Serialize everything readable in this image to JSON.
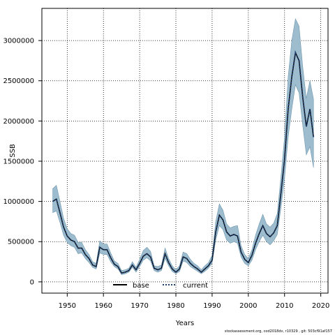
{
  "chart_data": {
    "type": "line",
    "xlabel": "Years",
    "ylabel": "SSB",
    "xlim": [
      1943,
      2022
    ],
    "ylim": [
      -140000,
      3400000
    ],
    "xticks": [
      1950,
      1960,
      1970,
      1980,
      1990,
      2000,
      2010,
      2020
    ],
    "yticks": [
      0,
      500000,
      1000000,
      1500000,
      2000000,
      2500000,
      3000000
    ],
    "grid": true,
    "legend_position": "bottom-center",
    "colors": {
      "band": "#9dbdcf",
      "band_edge": "#6f97af",
      "base": "#000000",
      "current": "#1f3f6e"
    },
    "x": [
      1946,
      1947,
      1948,
      1949,
      1950,
      1951,
      1952,
      1953,
      1954,
      1955,
      1956,
      1957,
      1958,
      1959,
      1960,
      1961,
      1962,
      1963,
      1964,
      1965,
      1966,
      1967,
      1968,
      1969,
      1970,
      1971,
      1972,
      1973,
      1974,
      1975,
      1976,
      1977,
      1978,
      1979,
      1980,
      1981,
      1982,
      1983,
      1984,
      1985,
      1986,
      1987,
      1988,
      1989,
      1990,
      1991,
      1992,
      1993,
      1994,
      1995,
      1996,
      1997,
      1998,
      1999,
      2000,
      2001,
      2002,
      2003,
      2004,
      2005,
      2006,
      2007,
      2008,
      2009,
      2010,
      2011,
      2012,
      2013,
      2014,
      2015,
      2016,
      2017,
      2018
    ],
    "series": [
      {
        "name": "base",
        "style": "solid",
        "values": [
          1000000,
          1030000,
          860000,
          680000,
          570000,
          520000,
          500000,
          420000,
          420000,
          340000,
          290000,
          210000,
          190000,
          430000,
          400000,
          400000,
          300000,
          220000,
          190000,
          110000,
          120000,
          140000,
          210000,
          150000,
          230000,
          320000,
          350000,
          310000,
          170000,
          150000,
          170000,
          350000,
          240000,
          160000,
          120000,
          160000,
          310000,
          290000,
          230000,
          190000,
          160000,
          120000,
          160000,
          200000,
          270000,
          620000,
          830000,
          770000,
          620000,
          570000,
          590000,
          570000,
          370000,
          280000,
          240000,
          330000,
          480000,
          600000,
          700000,
          600000,
          560000,
          610000,
          700000,
          1100000,
          1520000,
          2150000,
          2550000,
          2850000,
          2750000,
          2300000,
          1930000,
          2150000,
          1800000
        ]
      },
      {
        "name": "current",
        "style": "dotted",
        "values": [
          1000000,
          1030000,
          860000,
          680000,
          570000,
          520000,
          500000,
          420000,
          420000,
          340000,
          290000,
          210000,
          190000,
          430000,
          400000,
          400000,
          300000,
          220000,
          190000,
          110000,
          120000,
          140000,
          210000,
          150000,
          230000,
          320000,
          350000,
          310000,
          170000,
          150000,
          170000,
          350000,
          240000,
          160000,
          120000,
          160000,
          310000,
          290000,
          230000,
          190000,
          160000,
          120000,
          160000,
          200000,
          270000,
          620000,
          830000,
          770000,
          620000,
          570000,
          590000,
          570000,
          370000,
          280000,
          240000,
          330000,
          480000,
          600000,
          700000,
          600000,
          560000,
          610000,
          700000,
          1100000,
          1520000,
          2150000,
          2550000,
          2850000,
          2750000,
          2300000,
          1930000,
          2150000,
          1800000
        ]
      }
    ],
    "band": {
      "lower": [
        860000,
        880000,
        740000,
        580000,
        490000,
        450000,
        430000,
        350000,
        360000,
        290000,
        240000,
        180000,
        160000,
        360000,
        340000,
        340000,
        250000,
        190000,
        160000,
        90000,
        100000,
        120000,
        180000,
        120000,
        190000,
        270000,
        300000,
        260000,
        140000,
        120000,
        140000,
        290000,
        200000,
        130000,
        100000,
        130000,
        260000,
        240000,
        190000,
        160000,
        130000,
        100000,
        130000,
        170000,
        230000,
        520000,
        700000,
        650000,
        520000,
        480000,
        500000,
        480000,
        310000,
        230000,
        200000,
        270000,
        400000,
        500000,
        580000,
        500000,
        460000,
        510000,
        590000,
        920000,
        1280000,
        1800000,
        2150000,
        2450000,
        2350000,
        1950000,
        1580000,
        1680000,
        1420000
      ],
      "upper": [
        1160000,
        1200000,
        1000000,
        790000,
        660000,
        600000,
        580000,
        490000,
        490000,
        400000,
        340000,
        250000,
        230000,
        510000,
        470000,
        470000,
        360000,
        260000,
        230000,
        140000,
        150000,
        170000,
        250000,
        180000,
        280000,
        390000,
        430000,
        380000,
        200000,
        190000,
        210000,
        420000,
        290000,
        200000,
        150000,
        200000,
        370000,
        350000,
        280000,
        230000,
        200000,
        150000,
        200000,
        240000,
        330000,
        750000,
        970000,
        890000,
        720000,
        670000,
        690000,
        700000,
        450000,
        340000,
        290000,
        400000,
        580000,
        720000,
        840000,
        720000,
        680000,
        730000,
        850000,
        1300000,
        1800000,
        2550000,
        3000000,
        3270000,
        3180000,
        2680000,
        2280000,
        2500000,
        2270000
      ]
    }
  },
  "legend": {
    "base_label": "base",
    "current_label": "current"
  },
  "footer": {
    "text": "stockassessment.org, cod2018dv, r10329 , git: 503cf91af157"
  }
}
